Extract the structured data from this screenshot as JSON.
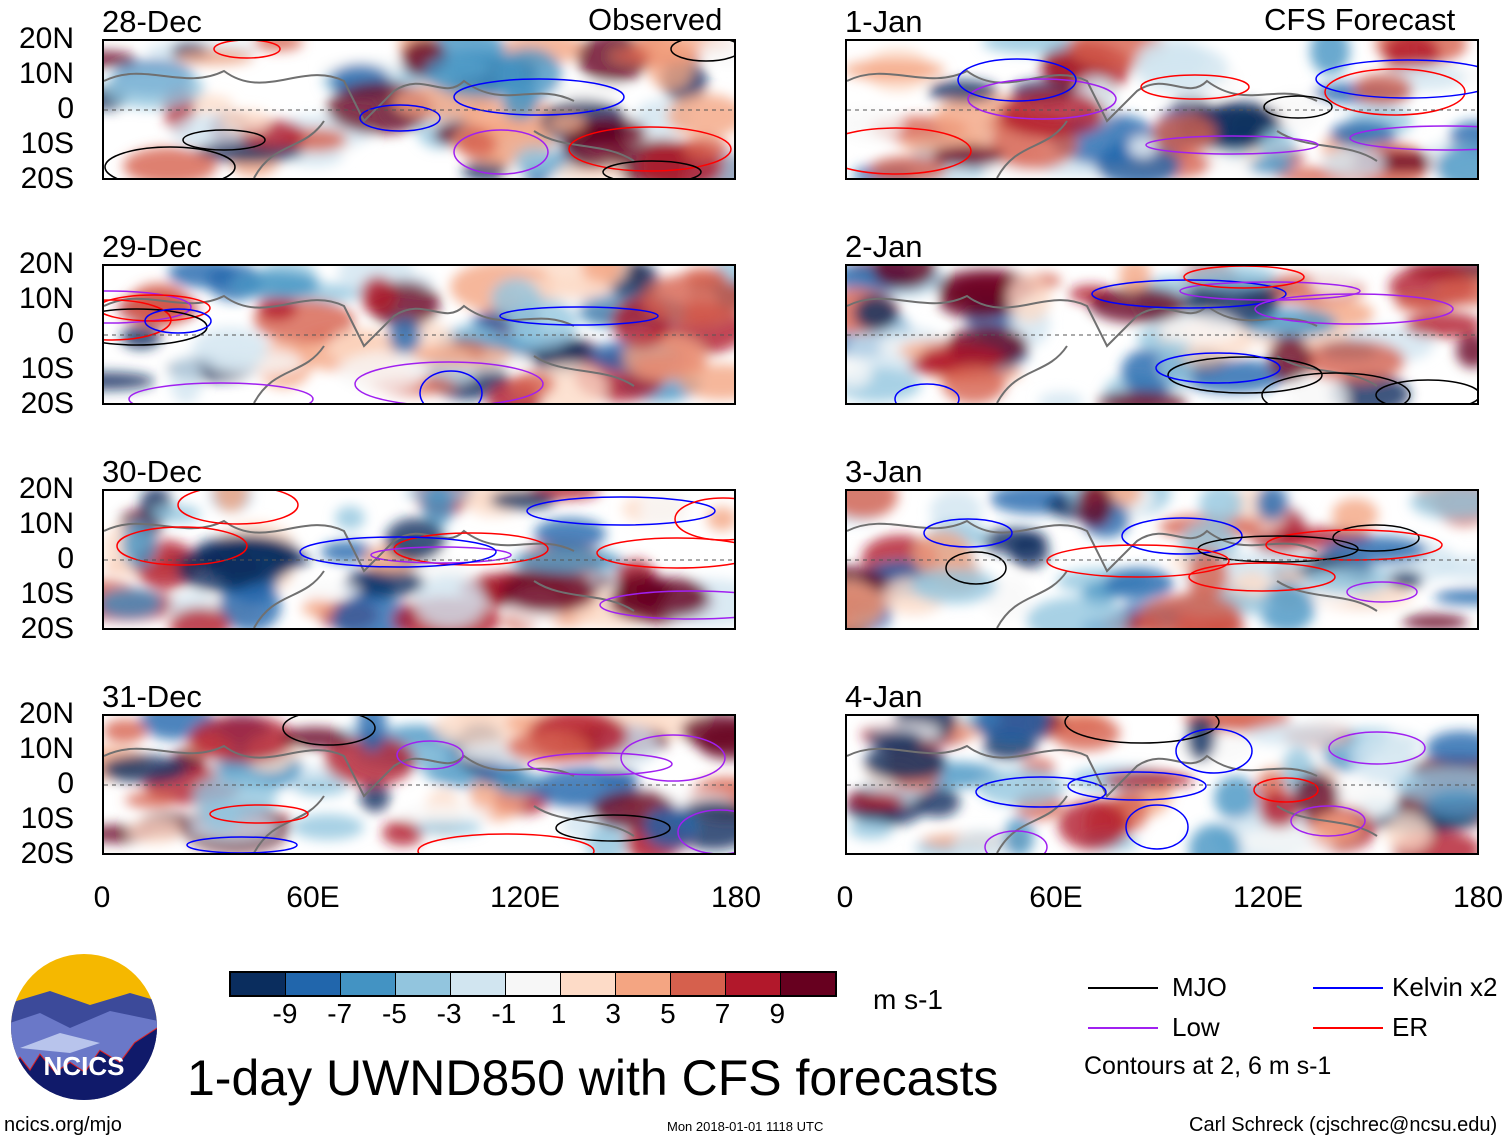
{
  "header": {
    "left": "Observed",
    "right": "CFS Forecast"
  },
  "panels": [
    {
      "date": "28-Dec",
      "column": "observed"
    },
    {
      "date": "29-Dec",
      "column": "observed"
    },
    {
      "date": "30-Dec",
      "column": "observed"
    },
    {
      "date": "31-Dec",
      "column": "observed"
    },
    {
      "date": "1-Jan",
      "column": "forecast"
    },
    {
      "date": "2-Jan",
      "column": "forecast"
    },
    {
      "date": "3-Jan",
      "column": "forecast"
    },
    {
      "date": "4-Jan",
      "column": "forecast"
    }
  ],
  "lat_labels": [
    "20N",
    "10N",
    "0",
    "10S",
    "20S"
  ],
  "lon_labels": [
    "0",
    "60E",
    "120E",
    "180"
  ],
  "colorbar": {
    "colors": [
      "#0a2d5e",
      "#2166ac",
      "#4393c3",
      "#92c5de",
      "#d1e5f0",
      "#f7f7f7",
      "#fddbc7",
      "#f4a582",
      "#d6604d",
      "#b2182b",
      "#67001f"
    ],
    "ticks": [
      "-9",
      "-7",
      "-5",
      "-3",
      "-1",
      "1",
      "3",
      "5",
      "7",
      "9"
    ],
    "units": "m s-1"
  },
  "legend": {
    "items": [
      {
        "label": "MJO",
        "color": "#000000"
      },
      {
        "label": "Kelvin x2",
        "color": "#0000ff"
      },
      {
        "label": "Low",
        "color": "#a020f0"
      },
      {
        "label": "ER",
        "color": "#ff0000"
      }
    ],
    "note": "Contours at 2, 6 m s-1"
  },
  "logo": {
    "text": "NCICS"
  },
  "title": "1-day UWND850 with CFS forecasts",
  "footer": {
    "left": "ncics.org/mjo",
    "center": "Mon 2018-01-01 1118 UTC",
    "right": "Carl Schreck (cjschrec@ncsu.edu)"
  }
}
